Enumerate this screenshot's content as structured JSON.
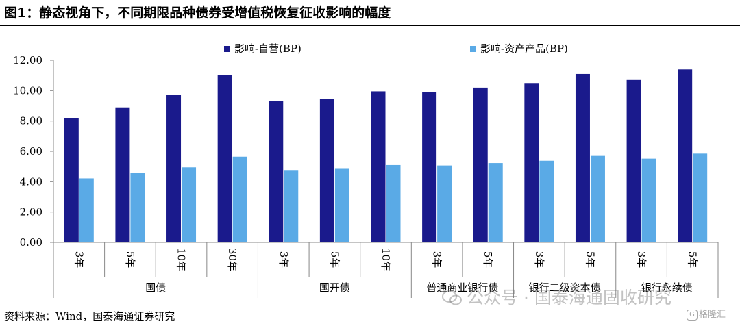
{
  "figure": {
    "title": "图1：静态视角下，不同期限品种债券受增值税恢复征收影响的幅度",
    "source": "资料来源：Wind，国泰海通证券研究"
  },
  "watermark": {
    "text": "公众号 · 国泰海通固收研究",
    "icon": "wechat-icon"
  },
  "badge": {
    "text": "格隆汇",
    "icon": "gelonghui-logo"
  },
  "chart_data": {
    "type": "bar",
    "categories": [
      "3年",
      "5年",
      "10年",
      "30年",
      "3年",
      "5年",
      "10年",
      "3年",
      "5年",
      "3年",
      "5年",
      "3年",
      "5年"
    ],
    "groups": [
      {
        "label": "国债",
        "span": 4
      },
      {
        "label": "国开债",
        "span": 3
      },
      {
        "label": "普通商业银行债",
        "span": 2
      },
      {
        "label": "银行二级资本债",
        "span": 2
      },
      {
        "label": "银行永续债",
        "span": 2
      }
    ],
    "series": [
      {
        "name": "影响-自营(BP)",
        "color": "#1a1a8c",
        "values": [
          8.2,
          8.9,
          9.7,
          11.05,
          9.3,
          9.45,
          9.95,
          9.9,
          10.2,
          10.5,
          11.1,
          10.7,
          11.4
        ]
      },
      {
        "name": "影响-资产产品(BP)",
        "color": "#5aaae6",
        "values": [
          4.22,
          4.57,
          4.95,
          5.65,
          4.77,
          4.85,
          5.1,
          5.07,
          5.23,
          5.38,
          5.7,
          5.52,
          5.85
        ]
      }
    ],
    "yticks": [
      "0.00",
      "2.00",
      "4.00",
      "6.00",
      "8.00",
      "10.00",
      "12.00"
    ],
    "ylim": [
      0,
      12
    ],
    "grid": false,
    "legend": "top"
  }
}
